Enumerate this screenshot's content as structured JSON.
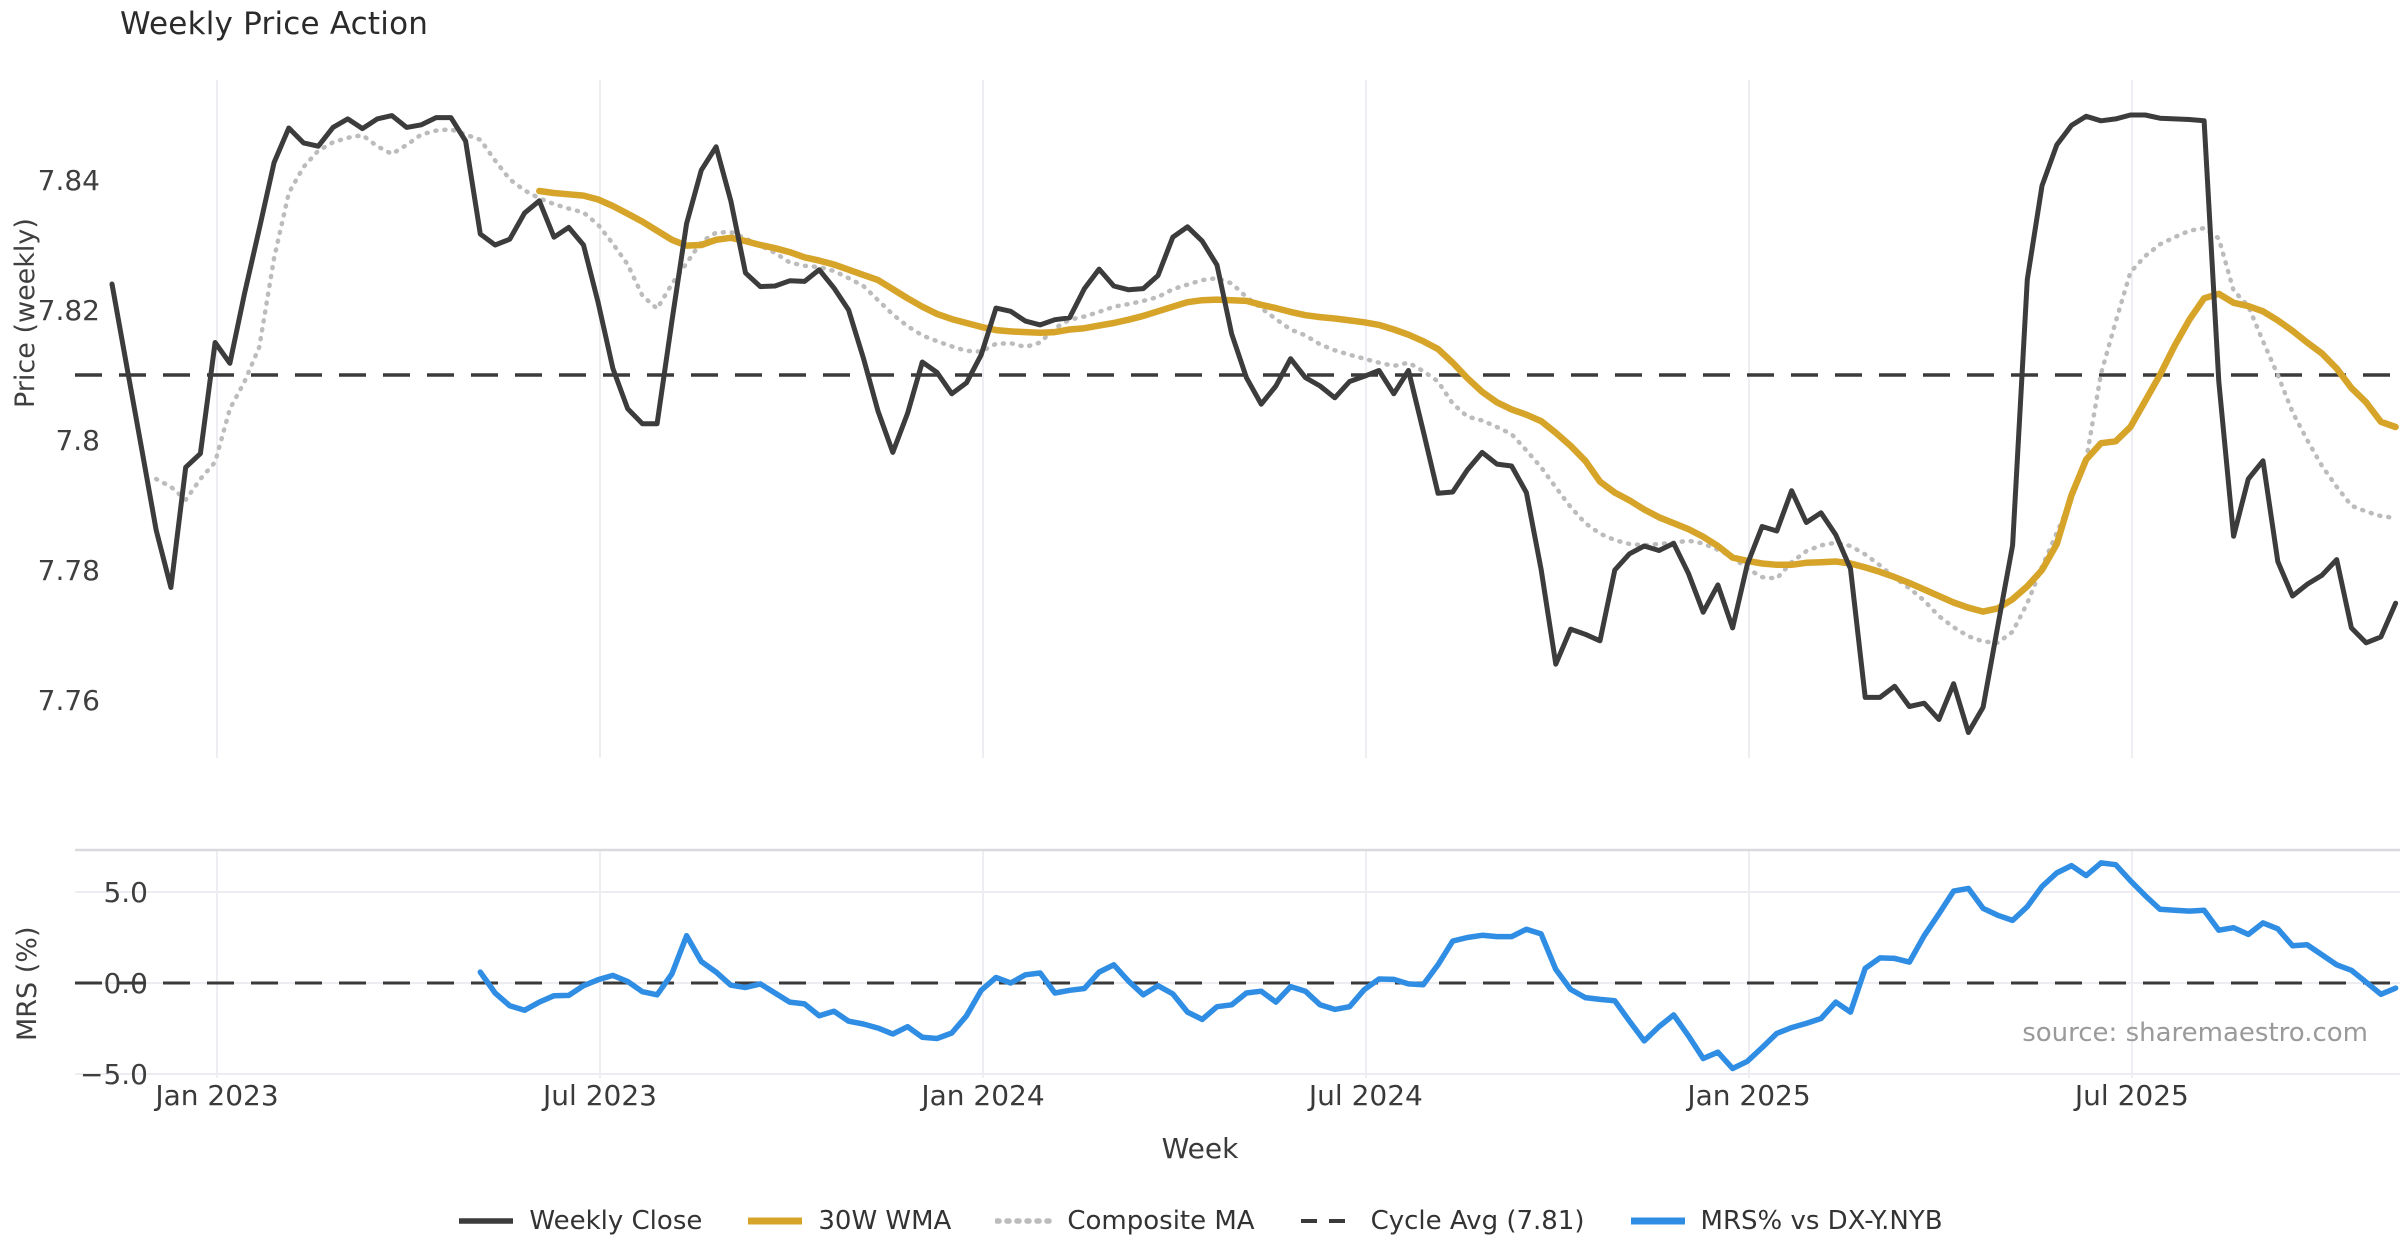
{
  "title": "Weekly Price Action",
  "xlabel": "Week",
  "source_note": "source: sharemaestro.com",
  "chart_data": {
    "type": "line",
    "x_unit": "week_index",
    "x_ticks": [
      {
        "week": 7.13,
        "label": "Jan 2023"
      },
      {
        "week": 33.12,
        "label": "Jul 2023"
      },
      {
        "week": 59.12,
        "label": "Jan 2024"
      },
      {
        "week": 85.11,
        "label": "Jul 2024"
      },
      {
        "week": 111.11,
        "label": "Jan 2025"
      },
      {
        "week": 137.1,
        "label": "Jul 2025"
      }
    ],
    "panels": [
      {
        "name": "price",
        "ylabel": "Price (weekly)",
        "ylim": [
          7.751,
          7.858
        ],
        "yticks": [
          {
            "v": 7.84,
            "label": "7.84"
          },
          {
            "v": 7.82,
            "label": "7.82"
          },
          {
            "v": 7.8,
            "label": "7.8"
          },
          {
            "v": 7.78,
            "label": "7.78"
          },
          {
            "v": 7.76,
            "label": "7.76"
          }
        ],
        "cycle_avg": 7.81,
        "grid": "vertical-only",
        "series": [
          {
            "name": "Weekly Close",
            "color": "#3c3c3c",
            "style": "solid",
            "width": 5,
            "start_week": 0,
            "values": [
              7.824,
              7.8114,
              7.7988,
              7.7861,
              7.7773,
              7.7958,
              7.7979,
              7.815,
              7.8118,
              7.8226,
              7.8325,
              7.8427,
              7.848,
              7.8457,
              7.8452,
              7.8481,
              7.8494,
              7.8479,
              7.8494,
              7.8499,
              7.8481,
              7.8485,
              7.8496,
              7.8496,
              7.846,
              7.8317,
              7.83,
              7.8309,
              7.8349,
              7.8368,
              7.8312,
              7.8327,
              7.83,
              7.8211,
              7.811,
              7.8048,
              7.8025,
              7.8025,
              7.8183,
              7.8333,
              7.8415,
              7.8451,
              7.8368,
              7.8257,
              7.8236,
              7.8237,
              7.8245,
              7.8244,
              7.8262,
              7.8234,
              7.82,
              7.8126,
              7.8044,
              7.7981,
              7.8041,
              7.812,
              7.8104,
              7.8071,
              7.8088,
              7.8131,
              7.8203,
              7.8198,
              7.8183,
              7.8177,
              7.8185,
              7.8188,
              7.8233,
              7.8263,
              7.8237,
              7.8231,
              7.8233,
              7.8253,
              7.8312,
              7.8328,
              7.8306,
              7.8269,
              7.8163,
              7.8096,
              7.8055,
              7.8083,
              7.8125,
              7.8096,
              7.8083,
              7.8065,
              7.809,
              7.8098,
              7.8107,
              7.8071,
              7.8107,
              7.8014,
              7.7918,
              7.792,
              7.7954,
              7.7981,
              7.7963,
              7.796,
              7.7919,
              7.7801,
              7.7655,
              7.7709,
              7.7701,
              7.7691,
              7.78,
              7.7825,
              7.7837,
              7.783,
              7.7841,
              7.7795,
              7.7735,
              7.7777,
              7.7711,
              7.7809,
              7.7867,
              7.786,
              7.7922,
              7.7873,
              7.7888,
              7.7854,
              7.7802,
              7.7604,
              7.7604,
              7.7621,
              7.759,
              7.7595,
              7.757,
              7.7625,
              7.755,
              7.7589,
              7.7714,
              7.7838,
              7.8247,
              7.8391,
              7.8454,
              7.8484,
              7.8498,
              7.8491,
              7.8494,
              7.85,
              7.85,
              7.8495,
              7.8494,
              7.8493,
              7.8491,
              7.809,
              7.7852,
              7.794,
              7.7968,
              7.7813,
              7.776,
              7.7778,
              7.7792,
              7.7816,
              7.7711,
              7.7688,
              7.7697,
              7.7749
            ]
          },
          {
            "name": "30W WMA",
            "color": "#d7a42a",
            "style": "solid",
            "width": 6.5,
            "start_week": 29,
            "values": [
              7.8383,
              7.838,
              7.8378,
              7.8376,
              7.837,
              7.836,
              7.8348,
              7.8336,
              7.8322,
              7.8308,
              7.8299,
              7.83,
              7.8308,
              7.8311,
              7.8306,
              7.83,
              7.8295,
              7.8289,
              7.8281,
              7.8276,
              7.827,
              7.8262,
              7.8254,
              7.8246,
              7.8232,
              7.8218,
              7.8205,
              7.8194,
              7.8186,
              7.818,
              7.8174,
              7.8169,
              7.8167,
              7.8166,
              7.8165,
              7.8166,
              7.817,
              7.8172,
              7.8176,
              7.818,
              7.8185,
              7.8191,
              7.8198,
              7.8205,
              7.8212,
              7.8215,
              7.8216,
              7.8215,
              7.8214,
              7.8208,
              7.8203,
              7.8197,
              7.8192,
              7.8189,
              7.8187,
              7.8184,
              7.8181,
              7.8177,
              7.817,
              7.8162,
              7.8152,
              7.814,
              7.8119,
              7.8095,
              7.8074,
              7.8058,
              7.8047,
              7.8039,
              7.8029,
              7.8011,
              7.7991,
              7.7968,
              7.7936,
              7.7919,
              7.7907,
              7.7893,
              7.7881,
              7.7872,
              7.7863,
              7.7851,
              7.7837,
              7.7819,
              7.7814,
              7.781,
              7.7808,
              7.7808,
              7.7811,
              7.7812,
              7.7813,
              7.781,
              7.7804,
              7.7797,
              7.7789,
              7.778,
              7.777,
              7.776,
              7.775,
              7.7742,
              7.7736,
              7.7741,
              7.7755,
              7.7775,
              7.78,
              7.784,
              7.7915,
              7.797,
              7.7995,
              7.7998,
              7.802,
              7.806,
              7.81,
              7.8145,
              7.8185,
              7.8218,
              7.8225,
              7.8211,
              7.8206,
              7.8198,
              7.8184,
              7.8168,
              7.815,
              7.8133,
              7.811,
              7.808,
              7.8058,
              7.8028,
              7.802
            ]
          },
          {
            "name": "Composite MA",
            "color": "#bcbcbc",
            "style": "dotted",
            "width": 4.5,
            "start_week": 3,
            "values": [
              7.794,
              7.7928,
              7.7908,
              7.794,
              7.7966,
              7.8048,
              7.809,
              7.8143,
              7.828,
              7.838,
              7.842,
              7.8445,
              7.8458,
              7.8465,
              7.8469,
              7.8452,
              7.844,
              7.8454,
              7.847,
              7.8476,
              7.8478,
              7.847,
              7.8462,
              7.843,
              7.8401,
              7.8384,
              7.8372,
              7.8363,
              7.8356,
              7.835,
              7.8331,
              7.8302,
              7.827,
              7.8222,
              7.8202,
              7.824,
              7.8272,
              7.8305,
              7.8319,
              7.832,
              7.831,
              7.8299,
              7.8288,
              7.8273,
              7.8268,
              7.8266,
              7.826,
              7.8249,
              7.8237,
              7.8215,
              7.8193,
              7.8175,
              7.8161,
              7.8152,
              7.8144,
              7.8137,
              7.8136,
              7.8148,
              7.8149,
              7.8143,
              7.815,
              7.8172,
              7.8185,
              7.819,
              7.8197,
              7.8205,
              7.8209,
              7.8214,
              7.822,
              7.8232,
              7.8239,
              7.8246,
              7.8249,
              7.8241,
              7.822,
              7.8203,
              7.8186,
              7.817,
              7.8161,
              7.8147,
              7.8138,
              7.8131,
              7.8125,
              7.8119,
              7.8114,
              7.8119,
              7.8106,
              7.809,
              7.8056,
              7.8036,
              7.803,
              7.802,
              7.8009,
              7.7984,
              7.7958,
              7.7927,
              7.7897,
              7.7872,
              7.7856,
              7.7846,
              7.784,
              7.7838,
              7.784,
              7.7842,
              7.7845,
              7.7841,
              7.7831,
              7.782,
              7.7802,
              7.7789,
              7.7787,
              7.7812,
              7.7829,
              7.7838,
              7.7842,
              7.7837,
              7.7824,
              7.7807,
              7.7788,
              7.7772,
              7.7753,
              7.7729,
              7.7712,
              7.7698,
              7.769,
              7.7688,
              7.7705,
              7.7749,
              7.7805,
              7.7857,
              7.791,
              7.797,
              7.8102,
              7.8182,
              7.8258,
              7.8283,
              7.8301,
              7.8312,
              7.8322,
              7.8326,
              7.831,
              7.823,
              7.8206,
              7.8152,
              7.81,
              7.8043,
              7.8,
              7.796,
              7.7928,
              7.7899,
              7.789,
              7.7883,
              7.788
            ]
          },
          {
            "name": "Cycle Avg (7.81)",
            "color": "#3a3a3a",
            "style": "dashed",
            "width": 3.5,
            "value": 7.81
          }
        ]
      },
      {
        "name": "mrs",
        "ylabel": "MRS (%)",
        "ylim": [
          -5.2,
          7.3
        ],
        "yticks": [
          {
            "v": 5.0,
            "label": "5.0"
          },
          {
            "v": 0.0,
            "label": "0.0"
          },
          {
            "v": -5.0,
            "label": "−5.0"
          }
        ],
        "zero_line": 0.0,
        "series": [
          {
            "name": "MRS% vs DX-Y.NYB",
            "color": "#2f8de4",
            "style": "solid",
            "width": 5.5,
            "start_week": 25,
            "values": [
              0.6,
              -0.55,
              -1.25,
              -1.5,
              -1.05,
              -0.7,
              -0.68,
              -0.15,
              0.18,
              0.42,
              0.08,
              -0.48,
              -0.65,
              0.5,
              2.6,
              1.18,
              0.6,
              -0.12,
              -0.25,
              -0.05,
              -0.55,
              -1.05,
              -1.15,
              -1.8,
              -1.55,
              -2.1,
              -2.25,
              -2.48,
              -2.8,
              -2.4,
              -2.98,
              -3.05,
              -2.75,
              -1.8,
              -0.4,
              0.3,
              0.0,
              0.45,
              0.55,
              -0.55,
              -0.4,
              -0.3,
              0.6,
              1.0,
              0.1,
              -0.65,
              -0.15,
              -0.6,
              -1.6,
              -2.0,
              -1.3,
              -1.2,
              -0.55,
              -0.45,
              -1.05,
              -0.2,
              -0.45,
              -1.2,
              -1.45,
              -1.3,
              -0.36,
              0.22,
              0.2,
              -0.05,
              -0.1,
              1.0,
              2.3,
              2.5,
              2.62,
              2.55,
              2.55,
              2.95,
              2.7,
              0.75,
              -0.35,
              -0.8,
              -0.9,
              -0.98,
              -2.1,
              -3.18,
              -2.4,
              -1.75,
              -2.9,
              -4.15,
              -3.8,
              -4.7,
              -4.3,
              -3.55,
              -2.77,
              -2.45,
              -2.22,
              -1.95,
              -1.05,
              -1.6,
              0.8,
              1.38,
              1.35,
              1.15,
              2.6,
              3.8,
              5.05,
              5.2,
              4.1,
              3.72,
              3.44,
              4.2,
              5.3,
              6.05,
              6.45,
              5.9,
              6.6,
              6.5,
              5.62,
              4.8,
              4.05,
              4.0,
              3.95,
              4.0,
              2.9,
              3.04,
              2.67,
              3.3,
              2.98,
              2.05,
              2.1,
              1.55,
              1.0,
              0.7,
              0.05,
              -0.62,
              -0.28
            ]
          }
        ]
      }
    ],
    "legend": [
      {
        "label": "Weekly Close",
        "color": "#3c3c3c",
        "style": "solid"
      },
      {
        "label": "30W WMA",
        "color": "#d7a42a",
        "style": "solid-thick"
      },
      {
        "label": "Composite MA",
        "color": "#bcbcbc",
        "style": "dotted"
      },
      {
        "label": "Cycle Avg (7.81)",
        "color": "#3a3a3a",
        "style": "dashed"
      },
      {
        "label": "MRS% vs DX-Y.NYB",
        "color": "#2f8de4",
        "style": "solid-thick"
      }
    ]
  }
}
